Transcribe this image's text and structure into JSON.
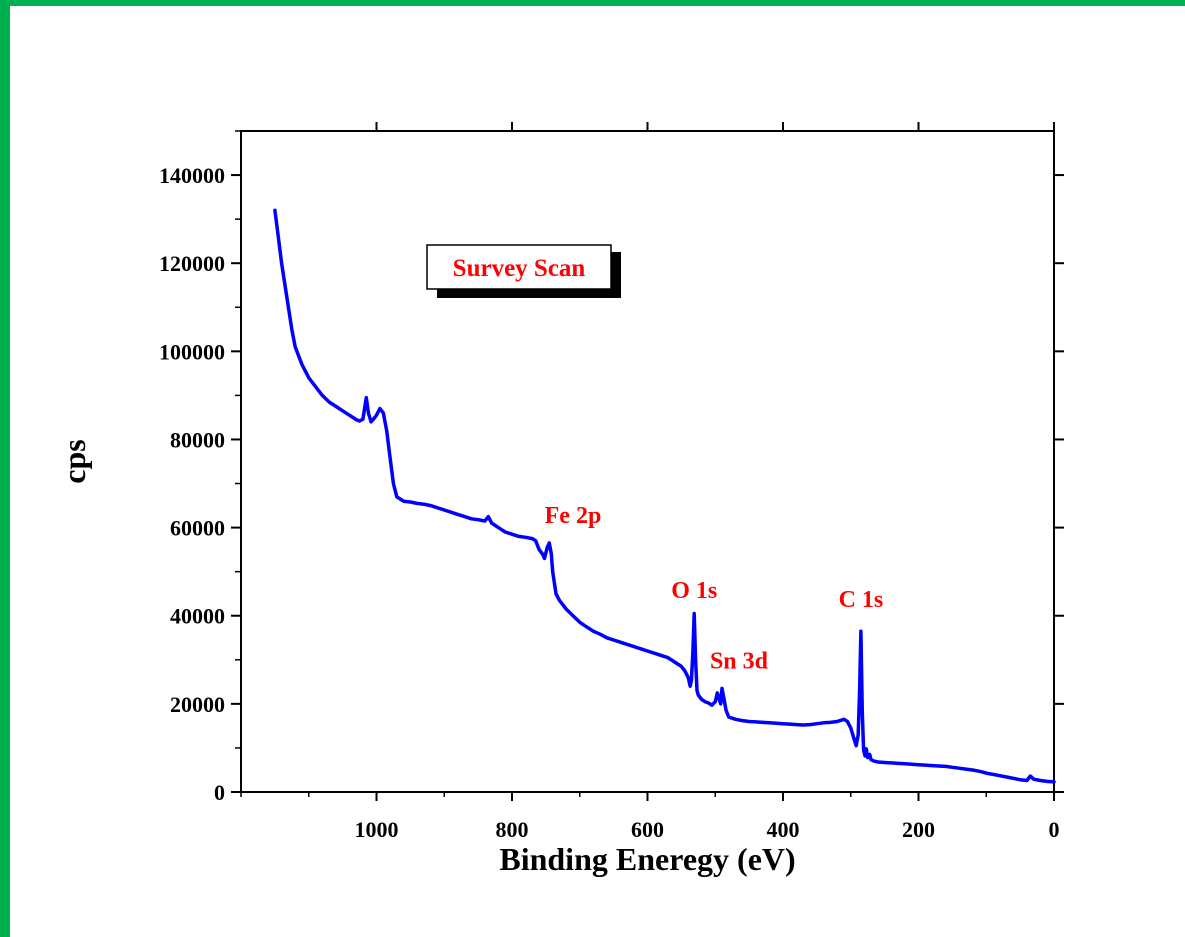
{
  "chart_data": {
    "type": "line",
    "xlabel": "Binding Eneregy (eV)",
    "ylabel": "cps",
    "xlim": [
      1200,
      0
    ],
    "ylim": [
      0,
      150000
    ],
    "x_reversed": true,
    "x_ticks": [
      1000,
      800,
      600,
      400,
      200,
      0
    ],
    "y_ticks": [
      0,
      20000,
      40000,
      60000,
      80000,
      100000,
      120000,
      140000
    ],
    "legend_label": "Survey Scan",
    "legend_position": "top-left",
    "series_color": "#0000ff",
    "label_color": "#ff0000",
    "annotations": [
      {
        "text": "Fe 2p",
        "x": 710,
        "y": 61000
      },
      {
        "text": "O 1s",
        "x": 531,
        "y": 44000
      },
      {
        "text": "Sn 3d",
        "x": 465,
        "y": 28000
      },
      {
        "text": "C 1s",
        "x": 285,
        "y": 42000
      }
    ],
    "series": [
      {
        "x": [
          1150,
          1145,
          1140,
          1135,
          1130,
          1125,
          1120,
          1110,
          1100,
          1090,
          1080,
          1070,
          1060,
          1050,
          1040,
          1035,
          1030,
          1025,
          1020,
          1015,
          1012,
          1008,
          1005,
          1000,
          995,
          990,
          985,
          980,
          975,
          970,
          965,
          960,
          950,
          940,
          930,
          920,
          910,
          900,
          890,
          880,
          870,
          860,
          850,
          840,
          835,
          830,
          825,
          820,
          815,
          810,
          800,
          790,
          780,
          770,
          765,
          760,
          755,
          752,
          748,
          745,
          742,
          740,
          735,
          730,
          725,
          720,
          710,
          700,
          690,
          680,
          670,
          660,
          650,
          640,
          630,
          620,
          610,
          600,
          590,
          580,
          570,
          560,
          550,
          545,
          540,
          537,
          535,
          533,
          531,
          529,
          527,
          525,
          520,
          515,
          510,
          505,
          500,
          497,
          494,
          492,
          490,
          487,
          484,
          480,
          470,
          460,
          450,
          440,
          430,
          420,
          410,
          400,
          390,
          380,
          370,
          360,
          350,
          340,
          330,
          320,
          310,
          305,
          300,
          295,
          292,
          289,
          287,
          285,
          283,
          281,
          279,
          277,
          275,
          272,
          270,
          265,
          260,
          250,
          240,
          230,
          220,
          210,
          200,
          190,
          180,
          170,
          160,
          150,
          140,
          130,
          120,
          110,
          100,
          90,
          80,
          70,
          60,
          50,
          40,
          35,
          30,
          20,
          10,
          0
        ],
        "y": [
          132000,
          126000,
          120000,
          115000,
          110000,
          105000,
          101000,
          97000,
          94000,
          92000,
          90000,
          88500,
          87500,
          86500,
          85500,
          85000,
          84500,
          84200,
          84600,
          89500,
          86000,
          84000,
          84500,
          85500,
          87000,
          86000,
          82000,
          76000,
          70000,
          67000,
          66500,
          66000,
          65800,
          65500,
          65300,
          65000,
          64500,
          64000,
          63500,
          63000,
          62500,
          62000,
          61800,
          61500,
          62500,
          61000,
          60500,
          60000,
          59500,
          59000,
          58500,
          58000,
          57800,
          57500,
          57000,
          55000,
          54000,
          53000,
          55500,
          56500,
          54000,
          50000,
          45000,
          43500,
          42500,
          41500,
          40000,
          38500,
          37500,
          36500,
          35800,
          35000,
          34500,
          34000,
          33500,
          33000,
          32500,
          32000,
          31500,
          31000,
          30500,
          29500,
          28500,
          27500,
          26000,
          24000,
          25500,
          32000,
          40500,
          30000,
          23000,
          22000,
          21000,
          20500,
          20200,
          19700,
          20500,
          22500,
          21000,
          20000,
          23500,
          21000,
          18500,
          17000,
          16500,
          16200,
          16000,
          15900,
          15800,
          15700,
          15600,
          15500,
          15400,
          15300,
          15200,
          15300,
          15500,
          15700,
          15800,
          16000,
          16500,
          16000,
          14500,
          12000,
          10500,
          13000,
          23000,
          36500,
          18000,
          9500,
          8200,
          9800,
          7800,
          8500,
          7300,
          7000,
          6800,
          6700,
          6600,
          6500,
          6400,
          6300,
          6200,
          6100,
          6000,
          5900,
          5800,
          5600,
          5400,
          5200,
          5000,
          4700,
          4300,
          4000,
          3700,
          3400,
          3100,
          2800,
          2600,
          3600,
          2900,
          2600,
          2400,
          2300
        ]
      }
    ]
  }
}
